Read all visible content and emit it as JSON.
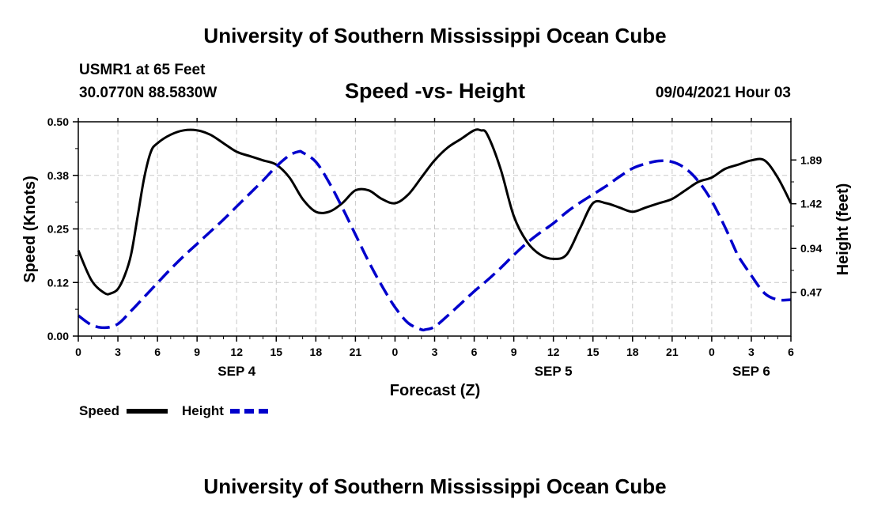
{
  "header": {
    "title": "University of Southern Mississippi Ocean Cube",
    "station": "USMR1 at 65 Feet",
    "coords": "30.0770N  88.5830W",
    "datetime": "09/04/2021 Hour 03"
  },
  "footer": {
    "title": "University of Southern Mississippi Ocean Cube"
  },
  "chart_data": {
    "type": "line",
    "title": "Speed -vs- Height",
    "xlabel": "Forecast (Z)",
    "ylabel_left": "Speed (Knots)",
    "ylabel_right": "Height (feet)",
    "x_range_hours": [
      0,
      54
    ],
    "x_tick_labels": [
      "0",
      "3",
      "6",
      "9",
      "12",
      "15",
      "18",
      "21",
      "0",
      "3",
      "6",
      "9",
      "12",
      "15",
      "18",
      "21",
      "0",
      "3",
      "6"
    ],
    "date_labels": [
      {
        "text": "SEP 4",
        "hour": 12
      },
      {
        "text": "SEP 5",
        "hour": 36
      },
      {
        "text": "SEP 6",
        "hour": 51
      }
    ],
    "y_left": {
      "range": [
        0,
        0.5
      ],
      "ticks": [
        0,
        0.125,
        0.25,
        0.375,
        0.5
      ],
      "tick_labels": [
        "0.00",
        "0.12",
        "0.25",
        "0.38",
        "0.50"
      ]
    },
    "y_right": {
      "range": [
        0,
        2.3
      ],
      "ticks": [
        0.47,
        0.94,
        1.42,
        1.89
      ],
      "tick_labels": [
        "0.47",
        "0.94",
        "1.42",
        "1.89"
      ]
    },
    "grid": true,
    "legend": {
      "position": "bottom-left"
    },
    "series": [
      {
        "name": "Speed",
        "axis": "left",
        "color": "#000000",
        "style": "solid",
        "x": [
          0,
          1,
          2,
          2.5,
          3,
          3.5,
          4,
          4.5,
          5,
          5.5,
          6,
          7,
          8,
          9,
          10,
          11,
          12,
          13,
          14,
          15,
          16,
          17,
          18,
          19,
          20,
          21,
          22,
          23,
          24,
          25,
          26,
          27,
          28,
          29,
          30,
          30.5,
          31,
          32,
          33,
          34,
          35,
          36,
          37,
          38,
          39,
          40,
          41,
          42,
          43,
          44,
          45,
          46,
          47,
          48,
          49,
          50,
          51,
          52,
          53,
          54
        ],
        "values": [
          0.2,
          0.13,
          0.1,
          0.1,
          0.11,
          0.14,
          0.19,
          0.28,
          0.37,
          0.43,
          0.45,
          0.47,
          0.48,
          0.48,
          0.47,
          0.45,
          0.43,
          0.42,
          0.41,
          0.4,
          0.37,
          0.32,
          0.29,
          0.29,
          0.31,
          0.34,
          0.34,
          0.32,
          0.31,
          0.33,
          0.37,
          0.41,
          0.44,
          0.46,
          0.48,
          0.48,
          0.47,
          0.39,
          0.28,
          0.22,
          0.19,
          0.18,
          0.19,
          0.25,
          0.31,
          0.31,
          0.3,
          0.29,
          0.3,
          0.31,
          0.32,
          0.34,
          0.36,
          0.37,
          0.39,
          0.4,
          0.41,
          0.41,
          0.37,
          0.31
        ]
      },
      {
        "name": "Height",
        "axis": "right",
        "color": "#0000cc",
        "style": "dashed",
        "x": [
          0,
          1,
          2,
          3,
          4,
          5,
          6,
          7,
          8,
          9,
          10,
          11,
          12,
          13,
          14,
          15,
          16,
          16.7,
          17,
          18,
          19,
          20,
          21,
          22,
          23,
          24,
          25,
          26,
          26.3,
          27,
          28,
          29,
          30,
          31,
          32,
          33,
          34,
          35,
          36,
          37,
          38,
          39,
          40,
          41,
          42,
          43,
          44,
          45,
          46,
          47,
          48,
          49,
          49.8,
          50,
          51,
          52,
          53,
          54
        ],
        "values": [
          0.22,
          0.12,
          0.09,
          0.13,
          0.27,
          0.42,
          0.57,
          0.72,
          0.86,
          0.99,
          1.12,
          1.25,
          1.39,
          1.53,
          1.67,
          1.82,
          1.94,
          1.98,
          1.97,
          1.87,
          1.65,
          1.38,
          1.09,
          0.8,
          0.54,
          0.31,
          0.14,
          0.07,
          0.07,
          0.1,
          0.22,
          0.35,
          0.48,
          0.6,
          0.73,
          0.87,
          1.0,
          1.11,
          1.21,
          1.33,
          1.43,
          1.52,
          1.61,
          1.71,
          1.8,
          1.85,
          1.88,
          1.87,
          1.8,
          1.66,
          1.45,
          1.17,
          0.92,
          0.86,
          0.65,
          0.46,
          0.39,
          0.39
        ]
      }
    ]
  }
}
